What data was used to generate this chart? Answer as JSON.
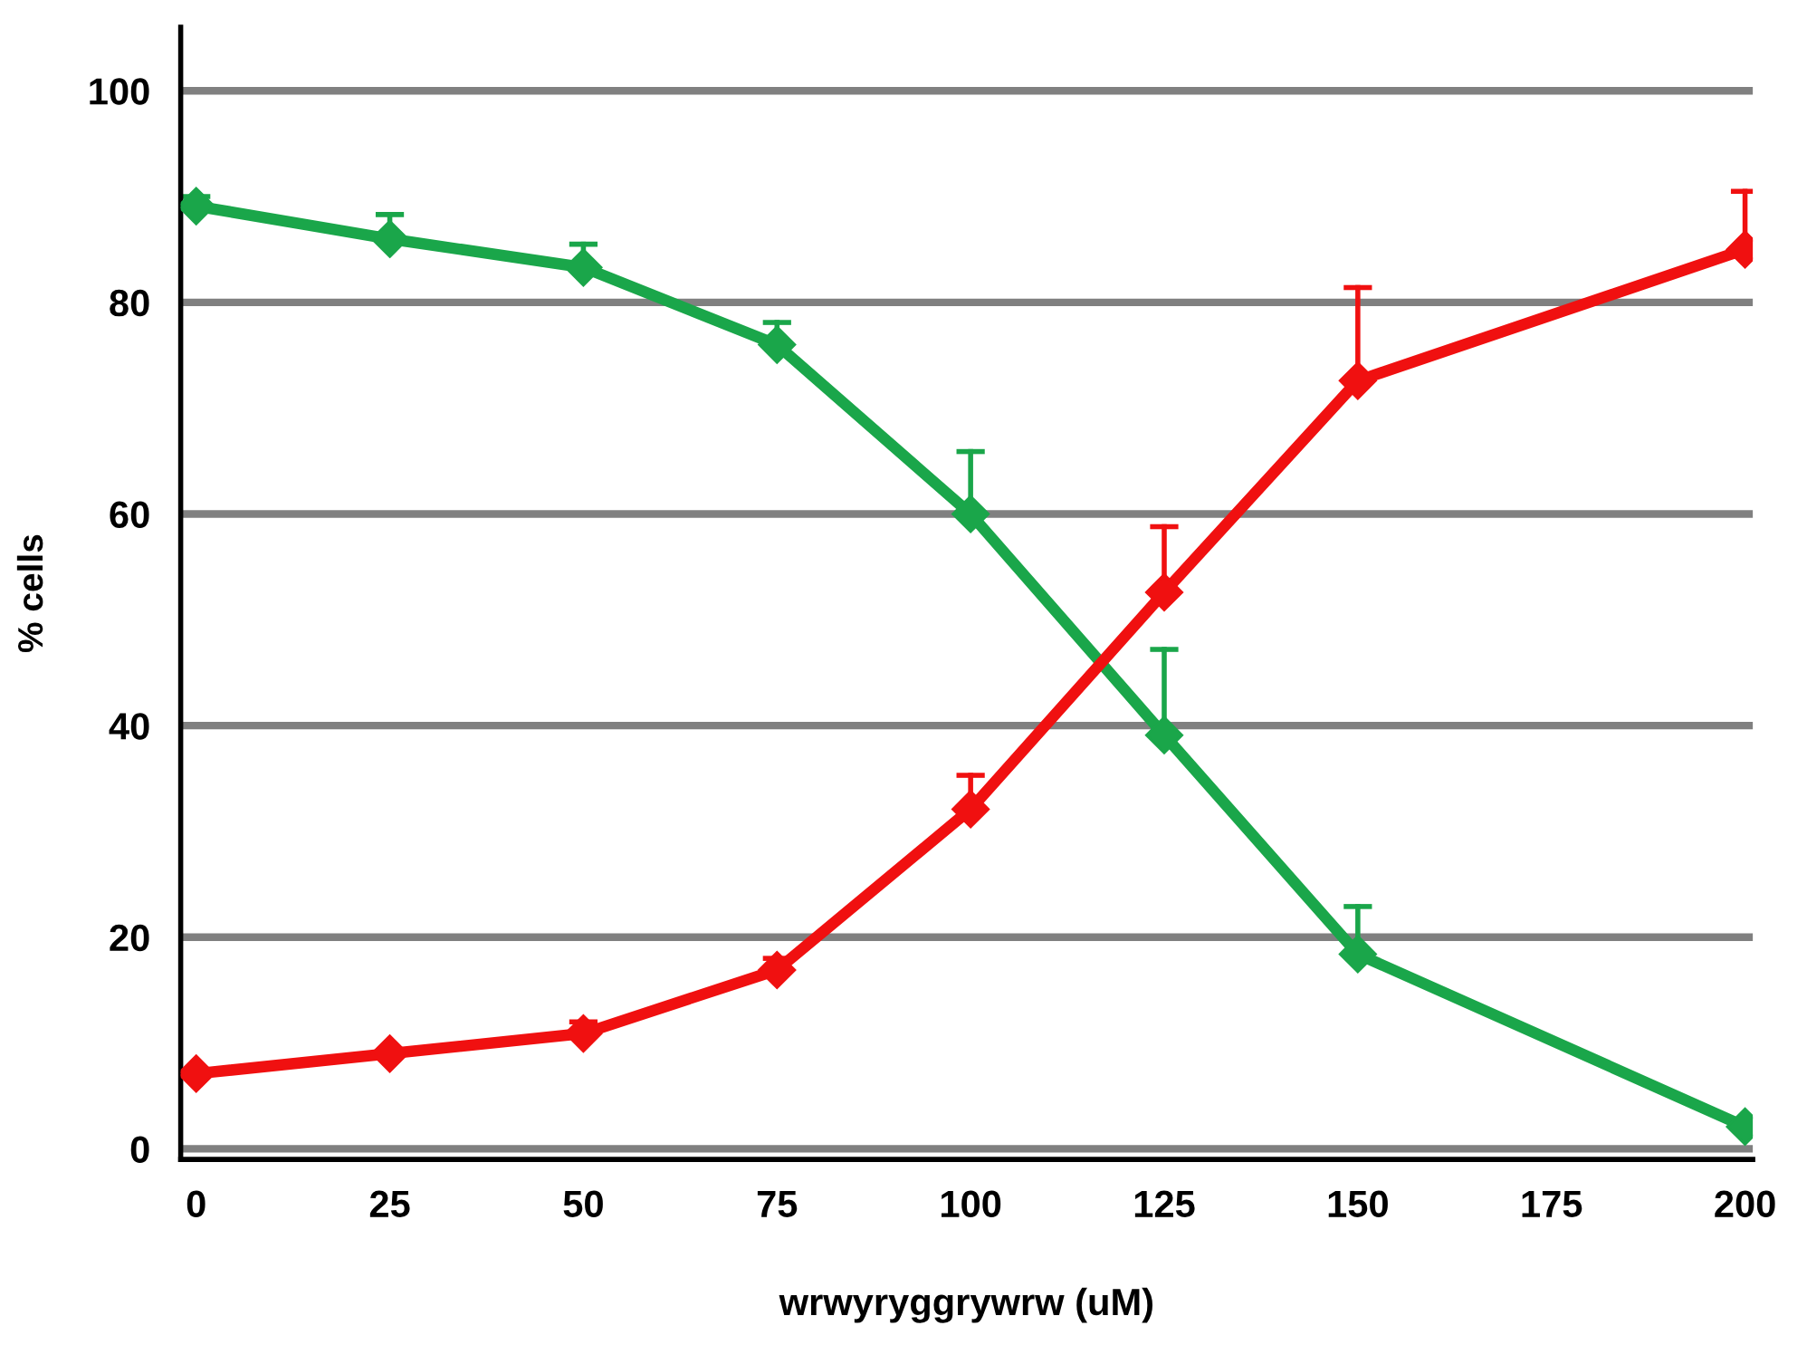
{
  "chart_data": {
    "type": "line",
    "xlabel": "wrwyryggrywrw (uM)",
    "ylabel": "% cells",
    "x": [
      0,
      25,
      50,
      75,
      100,
      125,
      150,
      200
    ],
    "series": [
      {
        "color": "#1aa64a",
        "values": [
          89.1,
          86.0,
          83.3,
          76.0,
          60.0,
          39.1,
          18.4,
          2.1
        ],
        "errors": [
          [
            89.1,
            90.0
          ],
          [
            86.0,
            88.3
          ],
          [
            83.3,
            85.5
          ],
          [
            76.0,
            78.1
          ],
          [
            60.0,
            65.9
          ],
          [
            39.1,
            47.2
          ],
          [
            18.4,
            22.9
          ],
          null
        ]
      },
      {
        "color": "#f01010",
        "values": [
          7.1,
          9.0,
          10.9,
          16.9,
          32.1,
          52.6,
          72.6,
          85.0
        ],
        "errors": [
          null,
          null,
          [
            10.9,
            12.0
          ],
          [
            16.9,
            18.0
          ],
          [
            32.1,
            35.3
          ],
          [
            52.6,
            58.8
          ],
          [
            72.6,
            81.4
          ],
          [
            85.0,
            90.5
          ]
        ]
      }
    ],
    "xlim": [
      -2,
      201
    ],
    "ylim": [
      -1,
      106
    ],
    "xticks": [
      0,
      25,
      50,
      75,
      100,
      125,
      150,
      175,
      200
    ],
    "yticks": [
      0,
      20,
      40,
      60,
      80,
      100
    ],
    "grid": "y",
    "marker": "diamond",
    "line_style": "solid"
  }
}
